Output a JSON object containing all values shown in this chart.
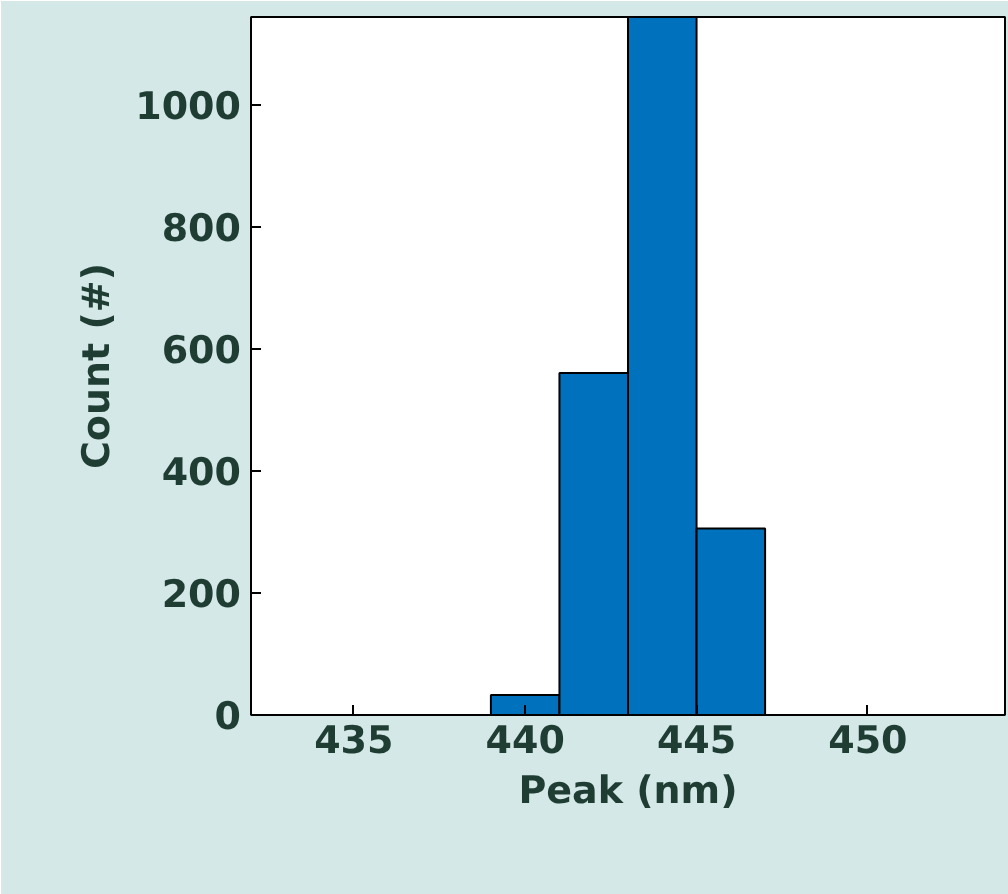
{
  "chart_data": {
    "type": "histogram",
    "xlabel": "Peak (nm)",
    "ylabel": "Count (#)",
    "bins": [
      433,
      435,
      437,
      439,
      441,
      443,
      445,
      447,
      449,
      451,
      453
    ],
    "values": [
      0,
      0,
      0,
      33,
      561,
      1145,
      306,
      0,
      0,
      0
    ],
    "color": "#0072bd",
    "xlim": [
      432,
      454
    ],
    "ylim": [
      0,
      1145
    ],
    "xticks": [
      435,
      440,
      445,
      450
    ],
    "yticks": [
      0,
      200,
      400,
      600,
      800,
      1000
    ],
    "grid": false
  }
}
